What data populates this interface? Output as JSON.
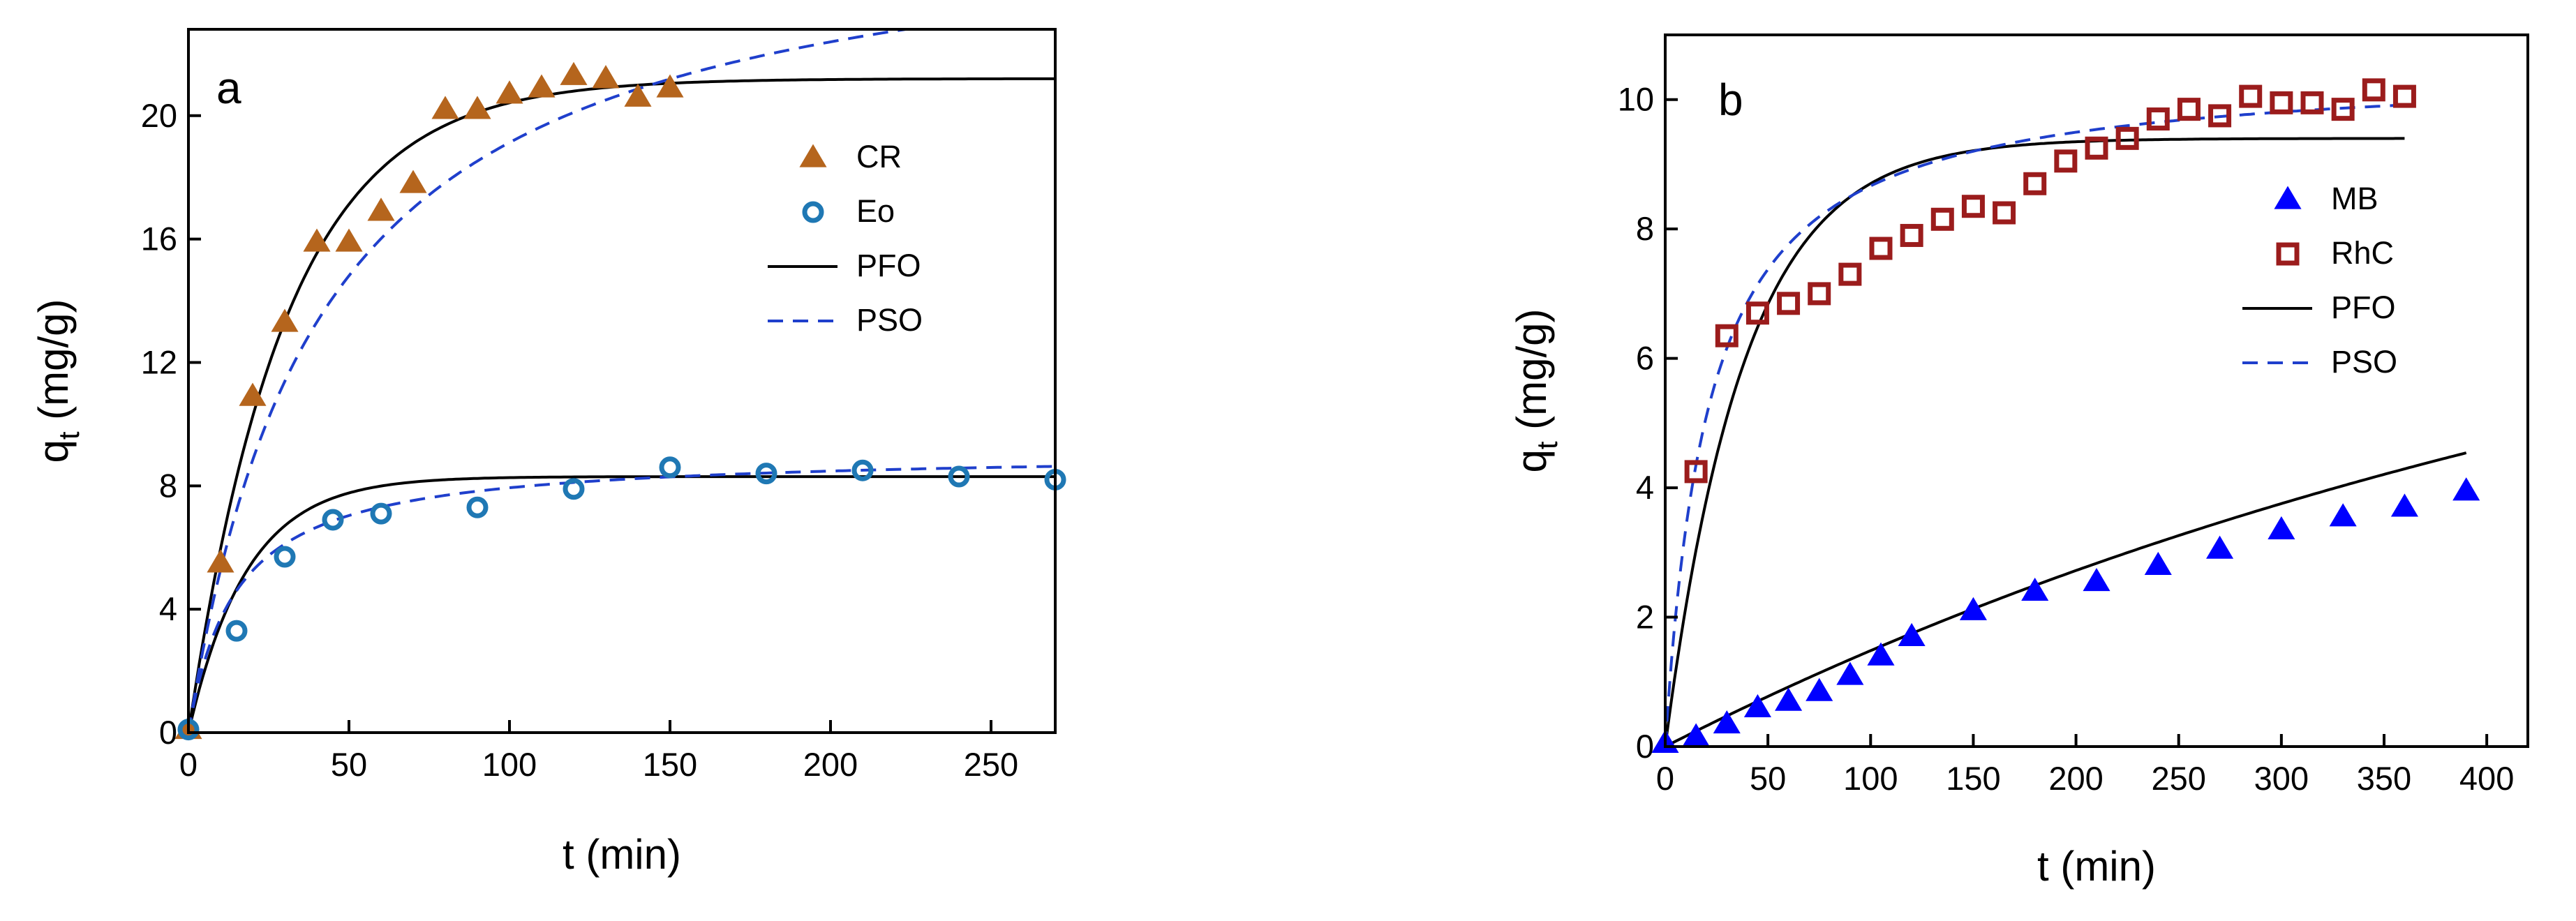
{
  "chart_data": [
    {
      "type": "scatter",
      "panel_label": "a",
      "xlabel": "t (min)",
      "ylabel_main": "q",
      "ylabel_sub": "t",
      "ylabel_units": " (mg/g)",
      "xlim": [
        0,
        270
      ],
      "ylim": [
        0,
        22.8
      ],
      "xticks": [
        0,
        50,
        100,
        150,
        200,
        250
      ],
      "yticks": [
        0,
        4,
        8,
        12,
        16,
        20
      ],
      "legend_position": "right",
      "series": [
        {
          "name": "CR",
          "marker": "triangle",
          "color": "#b5651d",
          "x": [
            0,
            10,
            20,
            30,
            40,
            50,
            60,
            70,
            80,
            90,
            100,
            110,
            120,
            130,
            140,
            150
          ],
          "y": [
            0.1,
            5.5,
            10.9,
            13.3,
            15.9,
            15.9,
            16.9,
            17.8,
            20.2,
            20.2,
            20.7,
            20.9,
            21.3,
            21.2,
            20.6,
            20.9
          ]
        },
        {
          "name": "Eo",
          "marker": "circle",
          "color": "#1f78b4",
          "x": [
            0,
            15,
            30,
            45,
            60,
            90,
            120,
            150,
            180,
            210,
            240,
            270
          ],
          "y": [
            0.1,
            3.3,
            5.7,
            6.9,
            7.1,
            7.3,
            7.9,
            8.6,
            8.4,
            8.5,
            8.3,
            8.2
          ]
        }
      ],
      "fits": [
        {
          "name": "PFO",
          "style": "solid",
          "color": "#000000",
          "params": [
            {
              "qe": 21.2,
              "k": 0.033
            },
            {
              "qe": 8.3,
              "k": 0.055
            }
          ]
        },
        {
          "name": "PSO",
          "style": "dashed",
          "color": "#1f3fcc",
          "params": [
            {
              "qe": 27.0,
              "k": 0.0009
            },
            {
              "qe": 9.1,
              "k": 0.0075
            }
          ]
        }
      ]
    },
    {
      "type": "scatter",
      "panel_label": "b",
      "xlabel": "t (min)",
      "ylabel_main": "q",
      "ylabel_sub": "t",
      "ylabel_units": " (mg/g)",
      "xlim": [
        0,
        420
      ],
      "ylim": [
        0,
        11
      ],
      "xticks": [
        0,
        50,
        100,
        150,
        200,
        250,
        300,
        350,
        400
      ],
      "yticks": [
        0,
        2,
        4,
        6,
        8,
        10
      ],
      "legend_position": "right",
      "series": [
        {
          "name": "MB",
          "marker": "triangle",
          "color": "#0000ff",
          "x": [
            0,
            15,
            30,
            45,
            60,
            75,
            90,
            105,
            120,
            150,
            180,
            210,
            240,
            270,
            300,
            330,
            360,
            390
          ],
          "y": [
            0.05,
            0.15,
            0.35,
            0.6,
            0.7,
            0.85,
            1.1,
            1.4,
            1.7,
            2.1,
            2.4,
            2.55,
            2.8,
            3.05,
            3.35,
            3.55,
            3.7,
            3.95
          ]
        },
        {
          "name": "RhC",
          "marker": "square",
          "color": "#9b1c1c",
          "x": [
            15,
            30,
            45,
            60,
            75,
            90,
            105,
            120,
            135,
            150,
            165,
            180,
            195,
            210,
            225,
            240,
            255,
            270,
            285,
            300,
            315,
            330,
            345,
            360
          ],
          "y": [
            4.25,
            6.35,
            6.7,
            6.85,
            7.0,
            7.3,
            7.7,
            7.9,
            8.15,
            8.35,
            8.25,
            8.7,
            9.05,
            9.25,
            9.4,
            9.7,
            9.85,
            9.75,
            10.05,
            9.95,
            9.95,
            9.85,
            10.15,
            10.05
          ]
        }
      ],
      "fits": [
        {
          "name": "PFO",
          "style": "solid",
          "color": "#000000",
          "params": [
            {
              "qe": 9.4,
              "k": 0.026,
              "xmax": 360
            },
            {
              "qe": 9.0,
              "k": 0.0018,
              "xmax": 390
            }
          ]
        },
        {
          "name": "PSO",
          "style": "dashed",
          "color": "#1f3fcc",
          "params": [
            {
              "qe": 10.5,
              "k": 0.0045,
              "xmax": 360
            }
          ]
        }
      ]
    }
  ]
}
